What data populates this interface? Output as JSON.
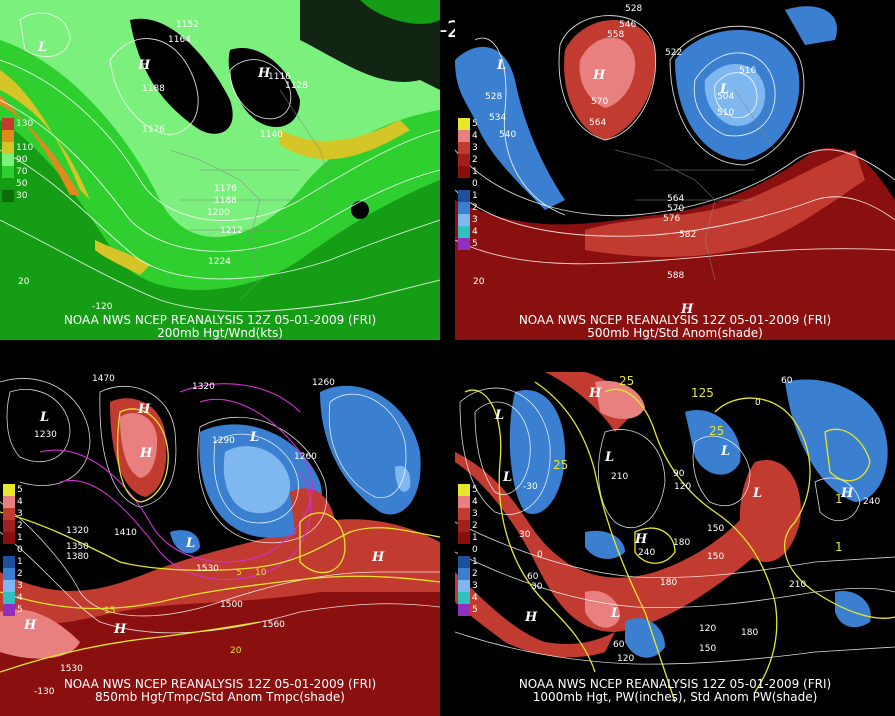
{
  "header": {
    "title": "12Z 05-01-2009 (FRI)"
  },
  "panels": {
    "p200": {
      "line1": "NOAA NWS NCEP REANALYSIS 12Z 05-01-2009 (FRI)",
      "line2": "200mb Hgt/Wnd(kts)",
      "scale": [
        "130",
        "110",
        "90",
        "70",
        "50",
        "30"
      ],
      "contours": [
        "1152",
        "1164",
        "1188",
        "1116",
        "1128",
        "1176",
        "1140",
        "1176",
        "1188",
        "1200",
        "1212",
        "1224"
      ],
      "misc": [
        "20",
        "-120"
      ]
    },
    "p500": {
      "line1": "NOAA NWS NCEP REANALYSIS 12Z 05-01-2009 (FRI)",
      "line2": "500mb Hgt/Std Anom(shade)",
      "scale": [
        "5",
        "4",
        "3",
        "2",
        "1",
        "0",
        "1",
        "2",
        "3",
        "4",
        "5"
      ],
      "contours": [
        "528",
        "546",
        "558",
        "522",
        "516",
        "528",
        "534",
        "540",
        "570",
        "564",
        "504",
        "510",
        "564",
        "570",
        "576",
        "582",
        "588"
      ],
      "misc": [
        "20"
      ]
    },
    "p850": {
      "line1": "NOAA NWS NCEP REANALYSIS 12Z 05-01-2009 (FRI)",
      "line2": "850mb Hgt/Tmpc/Std Anom Tmpc(shade)",
      "scale": [
        "5",
        "4",
        "3",
        "2",
        "1",
        "0",
        "1",
        "2",
        "3",
        "4",
        "5"
      ],
      "contours": [
        "1470",
        "1320",
        "1260",
        "1230",
        "1260",
        "1320",
        "1350",
        "1380",
        "1410",
        "1530",
        "1500",
        "1560",
        "1530",
        "1290"
      ],
      "misc": [
        "5",
        "10",
        "15",
        "20",
        "-130"
      ]
    },
    "p1000": {
      "line1": "NOAA NWS NCEP REANALYSIS 12Z 05-01-2009 (FRI)",
      "line2": "1000mb Hgt, PW(inches), Std Anom PW(shade)",
      "scale": [
        "5",
        "4",
        "3",
        "2",
        "1",
        "0",
        "1",
        "2",
        "3",
        "4",
        "5"
      ],
      "contours": [
        "60",
        "30",
        "0",
        "-30",
        "120",
        "180",
        "210",
        "240",
        "150",
        "90",
        "60",
        "30",
        "240",
        "210",
        "180",
        "150",
        "120",
        "60",
        "180",
        "150",
        "120"
      ],
      "misc": [
        "25",
        "1",
        "25",
        "125",
        "1",
        "25",
        "0"
      ]
    }
  },
  "colors": {
    "green_light": "#7cf07c",
    "green": "#2fcf2f",
    "green_dark": "#159d15",
    "yellow": "#d6c526",
    "orange": "#e08a1e",
    "blue": "#3a7fd0",
    "blue_light": "#7fb7f0",
    "red": "#c23b31",
    "red_light": "#e88080",
    "dark_red": "#8a1010",
    "magenta": "#d030d0",
    "contour_yellow": "#e6e62a"
  }
}
